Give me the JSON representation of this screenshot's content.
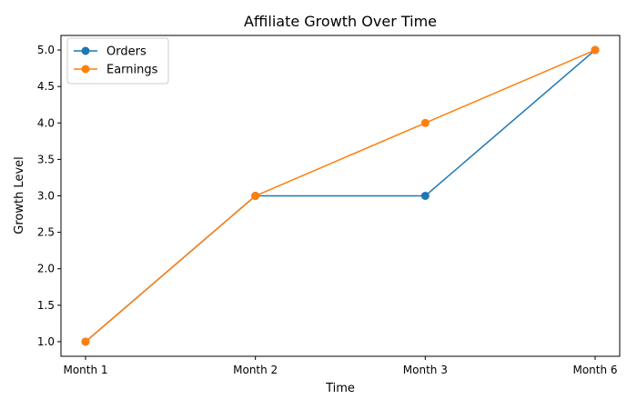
{
  "chart_data": {
    "type": "line",
    "title": "Affiliate Growth Over Time",
    "xlabel": "Time",
    "ylabel": "Growth Level",
    "categories": [
      "Month 1",
      "Month 2",
      "Month 3",
      "Month 6"
    ],
    "ylim": [
      0.8,
      5.2
    ],
    "yticks": [
      "1.0",
      "1.5",
      "2.0",
      "2.5",
      "3.0",
      "3.5",
      "4.0",
      "4.5",
      "5.0"
    ],
    "grid": false,
    "legend_position": "top-left",
    "series": [
      {
        "name": "Orders",
        "values": [
          1,
          3,
          3,
          5
        ],
        "color": "#1f77b4"
      },
      {
        "name": "Earnings",
        "values": [
          1,
          3,
          4,
          5
        ],
        "color": "#ff7f0e"
      }
    ]
  }
}
